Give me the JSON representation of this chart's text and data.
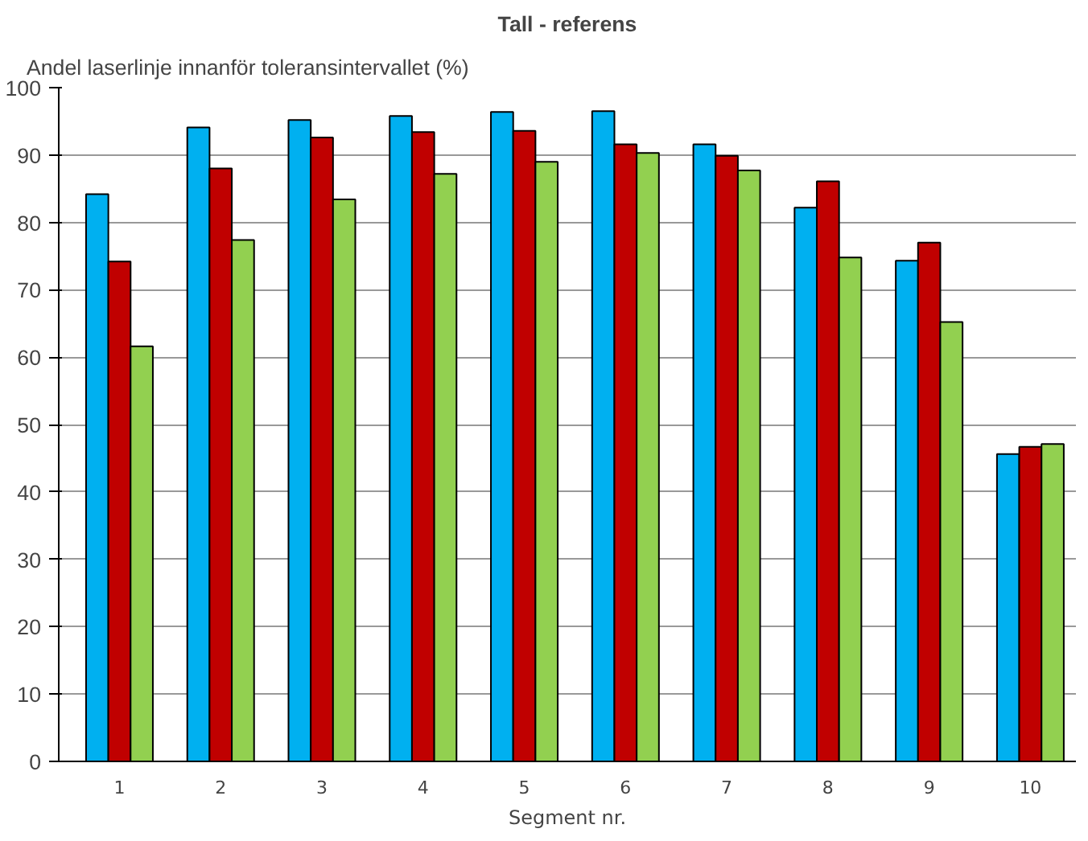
{
  "chart_data": {
    "type": "bar",
    "title": "Tall - referens",
    "ylabel": "Andel laserlinje innanför toleransintervallet (%)",
    "xlabel": "Segment nr.",
    "categories": [
      "1",
      "2",
      "3",
      "4",
      "5",
      "6",
      "7",
      "8",
      "9",
      "10"
    ],
    "series": [
      {
        "color": "#00b0f0",
        "values": [
          84.2,
          94.1,
          95.2,
          95.8,
          96.4,
          96.5,
          91.6,
          82.2,
          74.3,
          45.6
        ]
      },
      {
        "color": "#c00000",
        "values": [
          74.2,
          88.0,
          92.6,
          93.4,
          93.6,
          91.6,
          89.9,
          86.1,
          77.0,
          46.7
        ]
      },
      {
        "color": "#92d050",
        "values": [
          61.6,
          77.4,
          83.4,
          87.2,
          89.0,
          90.3,
          87.7,
          74.8,
          65.2,
          47.1
        ]
      }
    ],
    "ylim": [
      0,
      100
    ],
    "yticks": [
      0,
      10,
      20,
      30,
      40,
      50,
      60,
      70,
      80,
      90,
      100
    ],
    "grid": "y"
  }
}
